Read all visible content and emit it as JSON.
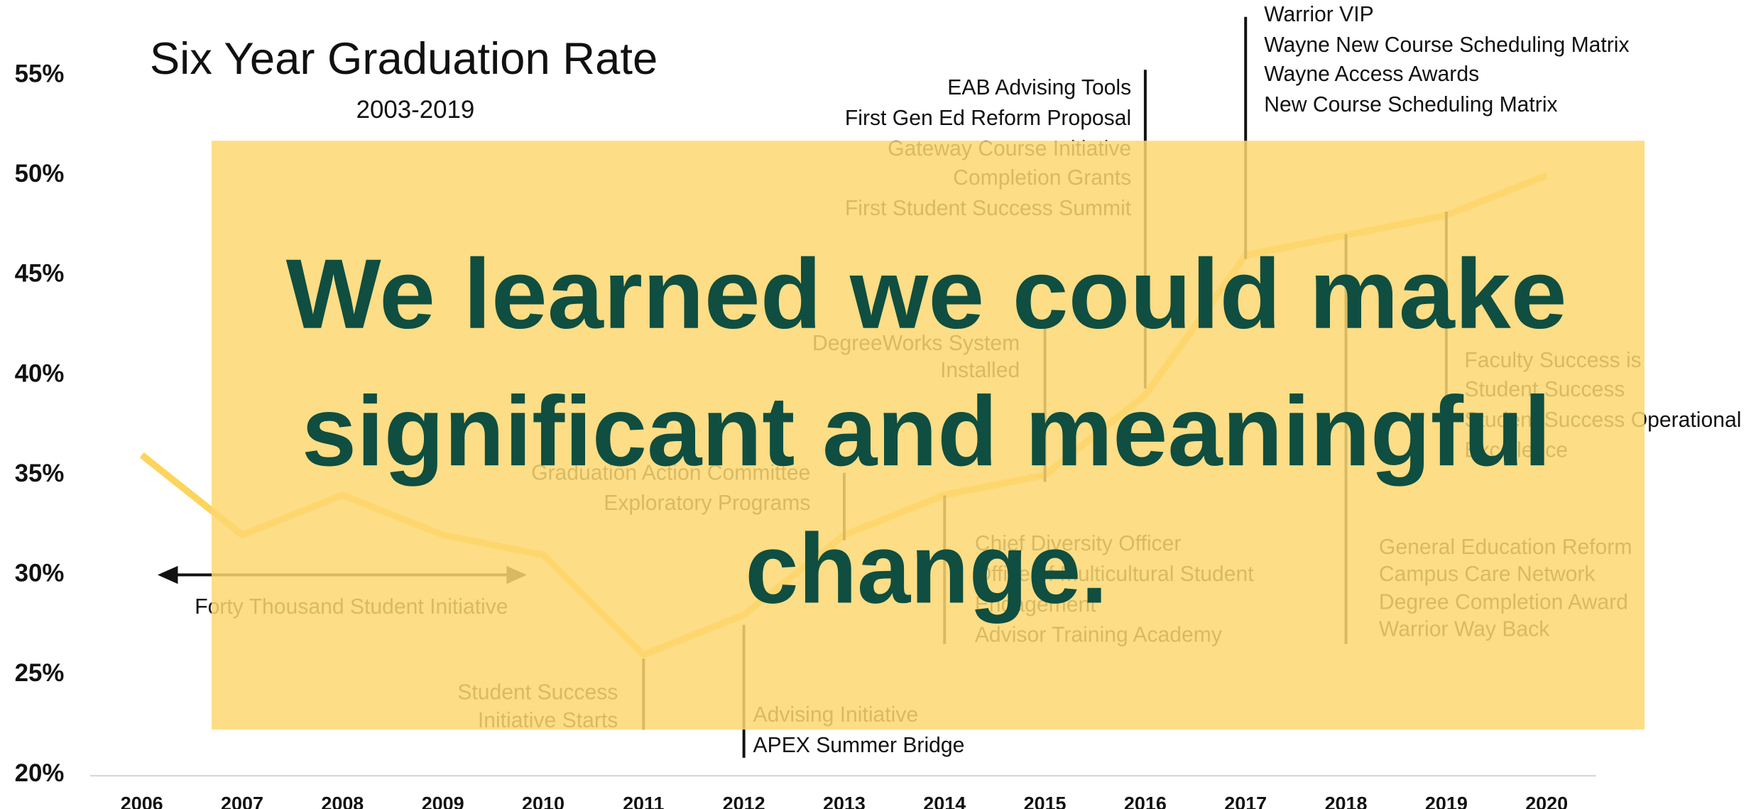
{
  "chart_data": {
    "type": "line",
    "title": "Six Year Graduation Rate",
    "subtitle": "2003-2019",
    "x": [
      2006,
      2007,
      2008,
      2009,
      2010,
      2011,
      2012,
      2013,
      2014,
      2015,
      2016,
      2017,
      2018,
      2019,
      2020
    ],
    "values": [
      36,
      32,
      34,
      32,
      31,
      26,
      28,
      32,
      34,
      35,
      39,
      46,
      47,
      48,
      50
    ],
    "color": "#fdd45c",
    "xlim": [
      2005.5,
      2020.5
    ],
    "xticks": [
      2006,
      2007,
      2008,
      2009,
      2010,
      2011,
      2012,
      2013,
      2014,
      2015,
      2016,
      2017,
      2018,
      2019,
      2020
    ],
    "ylim": [
      20,
      55
    ],
    "yticks": [
      {
        "value": 20,
        "label": "20%"
      },
      {
        "value": 25,
        "label": "25%"
      },
      {
        "value": 30,
        "label": "30%"
      },
      {
        "value": 35,
        "label": "35%"
      },
      {
        "value": 40,
        "label": "40%"
      },
      {
        "value": 45,
        "label": "45%"
      },
      {
        "value": 50,
        "label": "50%"
      },
      {
        "value": 55,
        "label": "55%"
      }
    ],
    "annotations": [
      {
        "lines": [
          "Forty Thousand Student Initiative"
        ]
      },
      {
        "x": 2011,
        "lines": [
          "Student Success",
          "Initiative Starts"
        ]
      },
      {
        "x": 2012,
        "lines": [
          "Advising Initiative",
          "APEX Summer Bridge"
        ]
      },
      {
        "x": 2013,
        "lines": [
          "Graduation Action Committee",
          "Exploratory Programs"
        ]
      },
      {
        "x": 2014,
        "lines": [
          "Chief Diversity Officer",
          "Office of Multicultural Student",
          "Engagement",
          "Advisor Training Academy"
        ]
      },
      {
        "x": 2015,
        "lines": [
          "DegreeWorks System",
          "Installed"
        ]
      },
      {
        "x": 2016,
        "lines": [
          "EAB Advising Tools",
          "First Gen Ed Reform  Proposal",
          "Gateway Course Initiative",
          "Completion Grants",
          "First Student Success Summit"
        ]
      },
      {
        "x": 2017,
        "lines": [
          "Warrior VIP",
          "Wayne New Course Scheduling Matrix",
          "Wayne Access Awards",
          "New Course Scheduling Matrix"
        ]
      },
      {
        "x": 2018,
        "lines": [
          "General Education Reform",
          "Campus Care Network",
          "Degree Completion Award",
          "Warrior Way Back"
        ]
      },
      {
        "x": 2019,
        "lines": [
          "Faculty Success  is",
          "Student Success",
          "Student Success Operational",
          "Excellence"
        ]
      }
    ]
  },
  "overlay": {
    "lines": [
      "We learned we could make",
      "significant and meaningful",
      "change."
    ]
  }
}
